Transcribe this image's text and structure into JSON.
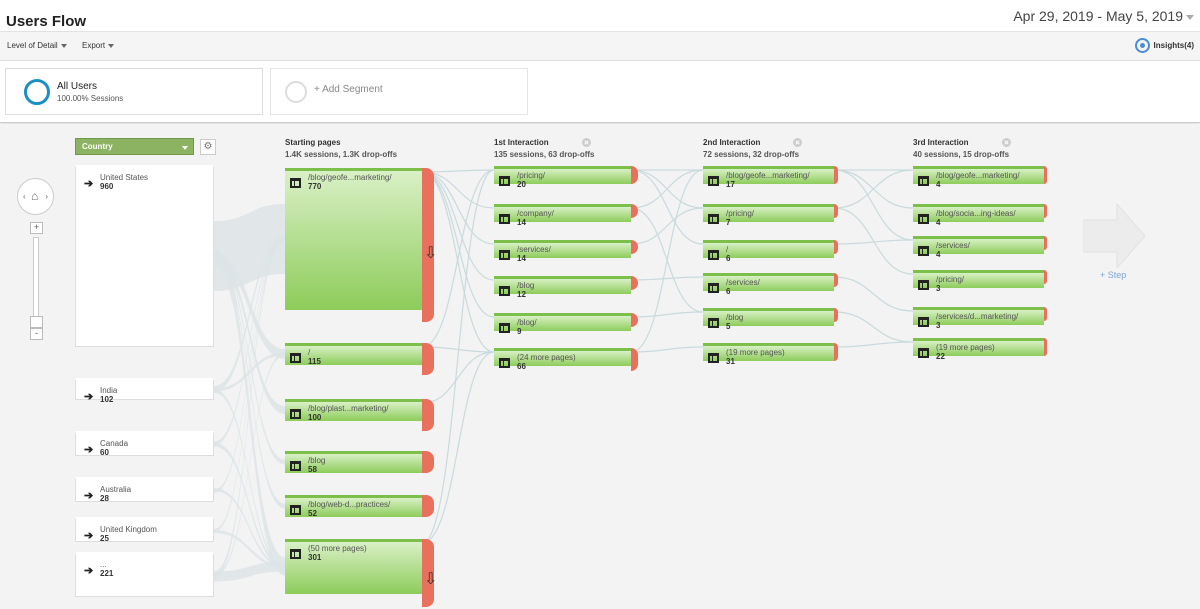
{
  "header": {
    "title": "Users Flow",
    "date_range": "Apr 29, 2019 - May 5, 2019"
  },
  "toolbar": {
    "level_of_detail": "Level of Detail",
    "export": "Export",
    "insights": "Insights(4)"
  },
  "segments": {
    "all_users": {
      "name": "All Users",
      "sub": "100.00% Sessions"
    },
    "add_segment": "+ Add Segment"
  },
  "dimension": {
    "selected": "Country"
  },
  "countries": [
    {
      "name": "United States",
      "value": "960"
    },
    {
      "name": "India",
      "value": "102"
    },
    {
      "name": "Canada",
      "value": "60"
    },
    {
      "name": "Australia",
      "value": "28"
    },
    {
      "name": "United Kingdom",
      "value": "25"
    },
    {
      "name": "...",
      "value": "221"
    }
  ],
  "columns": [
    {
      "title": "Starting pages",
      "sub": "1.4K sessions, 1.3K drop-offs",
      "nodes": [
        {
          "name": "/blog/geofe...marketing/",
          "value": "770"
        },
        {
          "name": "/",
          "value": "115"
        },
        {
          "name": "/blog/plast...marketing/",
          "value": "100"
        },
        {
          "name": "/blog",
          "value": "58"
        },
        {
          "name": "/blog/web-d...practices/",
          "value": "52"
        },
        {
          "name": "(50 more pages)",
          "value": "301"
        }
      ]
    },
    {
      "title": "1st Interaction",
      "sub": "135 sessions, 63 drop-offs",
      "nodes": [
        {
          "name": "/pricing/",
          "value": "20"
        },
        {
          "name": "/company/",
          "value": "14"
        },
        {
          "name": "/services/",
          "value": "14"
        },
        {
          "name": "/blog",
          "value": "12"
        },
        {
          "name": "/blog/",
          "value": "9"
        },
        {
          "name": "(24 more pages)",
          "value": "66"
        }
      ]
    },
    {
      "title": "2nd Interaction",
      "sub": "72 sessions, 32 drop-offs",
      "nodes": [
        {
          "name": "/blog/geofe...marketing/",
          "value": "17"
        },
        {
          "name": "/pricing/",
          "value": "7"
        },
        {
          "name": "/",
          "value": "6"
        },
        {
          "name": "/services/",
          "value": "6"
        },
        {
          "name": "/blog",
          "value": "5"
        },
        {
          "name": "(19 more pages)",
          "value": "31"
        }
      ]
    },
    {
      "title": "3rd Interaction",
      "sub": "40 sessions, 15 drop-offs",
      "nodes": [
        {
          "name": "/blog/geofe...marketing/",
          "value": "4"
        },
        {
          "name": "/blog/socia...ing-ideas/",
          "value": "4"
        },
        {
          "name": "/services/",
          "value": "4"
        },
        {
          "name": "/pricing/",
          "value": "3"
        },
        {
          "name": "/services/d...marketing/",
          "value": "3"
        },
        {
          "name": "(19 more pages)",
          "value": "22"
        }
      ]
    }
  ],
  "step": {
    "label": "+ Step"
  },
  "colors": {
    "accent": "#1a8fc6",
    "node_green": "#8dcc5a",
    "dropoff_red": "#e8705d",
    "country_dd": "#8cb361"
  }
}
